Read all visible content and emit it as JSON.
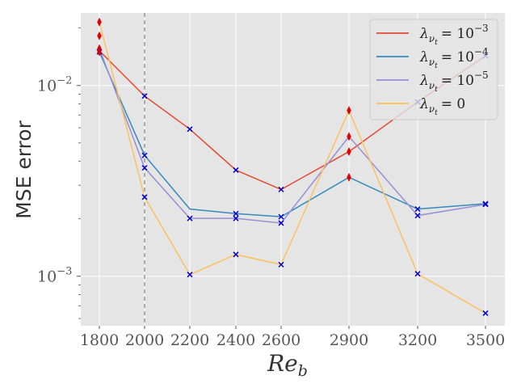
{
  "chart_data": {
    "type": "line",
    "title": "",
    "xlabel": "Re",
    "xlabel_sub": "b",
    "ylabel": "MSE error",
    "yscale": "log",
    "ylim": [
      0.00055,
      0.024
    ],
    "x_categories": [
      1800,
      2000,
      2200,
      2400,
      2600,
      2900,
      3200,
      3500
    ],
    "x_tick_labels": [
      "1800",
      "2000",
      "2200",
      "2400",
      "2600",
      "2900",
      "3200",
      "3500"
    ],
    "y_ticks": [
      {
        "value": 0.01,
        "base": "10",
        "exp": "−2"
      },
      {
        "value": 0.001,
        "base": "10",
        "exp": "−3"
      }
    ],
    "vline_x": 2000,
    "legend_position": "top-right",
    "series": [
      {
        "name": "λνt = 10⁻³",
        "color": "#E24A33",
        "label_base": "= 10",
        "label_exp": "−3",
        "x": [
          1800,
          2000,
          2200,
          2400,
          2600,
          2900,
          3200,
          3500
        ],
        "values": [
          0.0152,
          0.0088,
          0.0059,
          0.0036,
          0.00285,
          0.0045,
          0.0082,
          0.0143
        ]
      },
      {
        "name": "λνt = 10⁻⁴",
        "color": "#348ABD",
        "label_base": "= 10",
        "label_exp": "−4",
        "x": [
          1800,
          2000,
          2200,
          2400,
          2600,
          2900,
          3200,
          3500
        ],
        "values": [
          0.015,
          0.0043,
          0.00225,
          0.00213,
          0.00205,
          0.0033,
          0.00225,
          0.0024
        ]
      },
      {
        "name": "λνt = 10⁻⁵",
        "color": "#988ED5",
        "label_base": "= 10",
        "label_exp": "−5",
        "x": [
          1800,
          2000,
          2200,
          2400,
          2600,
          2900,
          3200,
          3500
        ],
        "values": [
          0.0156,
          0.0037,
          0.00201,
          0.00201,
          0.0019,
          0.0054,
          0.00208,
          0.00238
        ]
      },
      {
        "name": "λνt = 0",
        "color": "#FBC15E",
        "label_base": "= 0",
        "label_exp": "",
        "x": [
          1800,
          2000,
          2200,
          2400,
          2600,
          2900,
          3200,
          3500
        ],
        "values": [
          0.0215,
          0.0026,
          0.00102,
          0.0013,
          0.00115,
          0.0074,
          0.00103,
          0.00064
        ]
      }
    ],
    "diamond_markers": [
      {
        "x": 1800,
        "y": 0.0215
      },
      {
        "x": 1800,
        "y": 0.0182
      },
      {
        "x": 1800,
        "y": 0.0156
      },
      {
        "x": 1800,
        "y": 0.015
      },
      {
        "x": 2900,
        "y": 0.0074
      },
      {
        "x": 2900,
        "y": 0.0054
      },
      {
        "x": 2900,
        "y": 0.0045
      },
      {
        "x": 2900,
        "y": 0.0033
      }
    ],
    "cross_markers": [
      {
        "x": 1800,
        "y": 0.015
      },
      {
        "x": 2000,
        "y": 0.0088
      },
      {
        "x": 2000,
        "y": 0.0043
      },
      {
        "x": 2000,
        "y": 0.0037
      },
      {
        "x": 2000,
        "y": 0.0026
      },
      {
        "x": 2200,
        "y": 0.0059
      },
      {
        "x": 2200,
        "y": 0.00201
      },
      {
        "x": 2200,
        "y": 0.00102
      },
      {
        "x": 2400,
        "y": 0.0036
      },
      {
        "x": 2400,
        "y": 0.00213
      },
      {
        "x": 2400,
        "y": 0.00201
      },
      {
        "x": 2400,
        "y": 0.0013
      },
      {
        "x": 2600,
        "y": 0.00285
      },
      {
        "x": 2600,
        "y": 0.00205
      },
      {
        "x": 2600,
        "y": 0.0019
      },
      {
        "x": 2600,
        "y": 0.00115
      },
      {
        "x": 3200,
        "y": 0.0082
      },
      {
        "x": 3200,
        "y": 0.00208
      },
      {
        "x": 3200,
        "y": 0.00225
      },
      {
        "x": 3200,
        "y": 0.00103
      },
      {
        "x": 3500,
        "y": 0.0143
      },
      {
        "x": 3500,
        "y": 0.0024
      },
      {
        "x": 3500,
        "y": 0.00238
      },
      {
        "x": 3500,
        "y": 0.00064
      }
    ]
  }
}
